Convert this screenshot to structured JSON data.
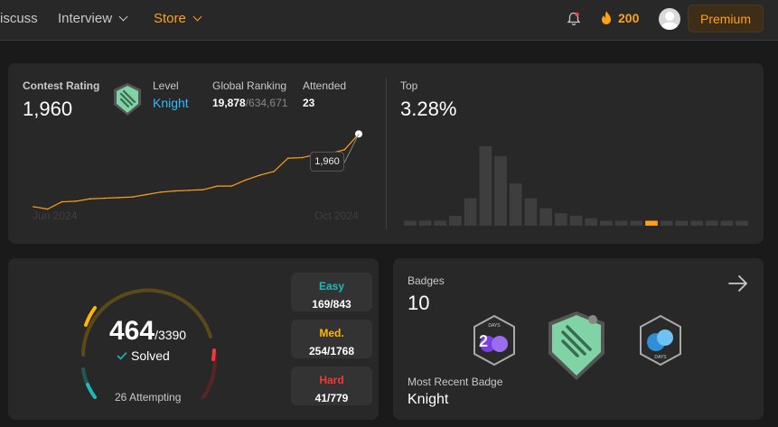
{
  "nav": {
    "discuss": "iscuss",
    "interview": "Interview",
    "store": "Store",
    "streak": "200",
    "premium": "Premium"
  },
  "contest": {
    "rating_label": "Contest Rating",
    "rating": "1,960",
    "level_label": "Level",
    "level": "Knight",
    "ranking_label": "Global Ranking",
    "ranking": "19,878",
    "ranking_total": "/634,671",
    "attended_label": "Attended",
    "attended": "23",
    "x_start": "Jun 2024",
    "x_end": "Oct 2024",
    "tooltip": "1,960",
    "top_label": "Top",
    "top_value": "3.28%"
  },
  "chart_data": [
    {
      "type": "line",
      "title": "",
      "x": [
        "Jun 2024",
        "",
        "",
        "",
        "",
        "",
        "",
        "",
        "",
        "",
        "",
        "",
        "",
        "",
        "",
        "",
        "",
        "",
        "",
        "",
        "",
        "",
        "",
        "Oct 2024"
      ],
      "series": [
        {
          "values": [
            1840,
            1836,
            1848,
            1849,
            1853,
            1854,
            1855,
            1856,
            1860,
            1864,
            1866,
            1867,
            1868,
            1874,
            1874,
            1884,
            1892,
            1898,
            1920,
            1921,
            1926,
            1928,
            1934,
            1960
          ]
        }
      ],
      "xlabel": "",
      "ylabel": ""
    },
    {
      "type": "bar",
      "title": "",
      "values": [
        2,
        2,
        2,
        4,
        11,
        32,
        28,
        17,
        11,
        7,
        5,
        4,
        3,
        2,
        2,
        2,
        2,
        2,
        2,
        2,
        2,
        2,
        2
      ],
      "highlight_index": 16,
      "colors": {
        "default": "#3e3e3e",
        "highlight": "#ffa116"
      }
    }
  ],
  "solved": {
    "count": "464",
    "total": "/3390",
    "solved_label": "Solved",
    "attempting": "26 Attempting",
    "easy": {
      "label": "Easy",
      "value": "169/843",
      "solved": 169,
      "total": 843,
      "color": "#1cbaba"
    },
    "medium": {
      "label": "Med.",
      "value": "254/1768",
      "solved": 254,
      "total": 1768,
      "color": "#ffb700"
    },
    "hard": {
      "label": "Hard",
      "value": "41/779",
      "solved": 41,
      "total": 779,
      "color": "#f63737"
    }
  },
  "badges": {
    "label": "Badges",
    "count": "10",
    "recent_label": "Most Recent Badge",
    "recent": "Knight"
  }
}
